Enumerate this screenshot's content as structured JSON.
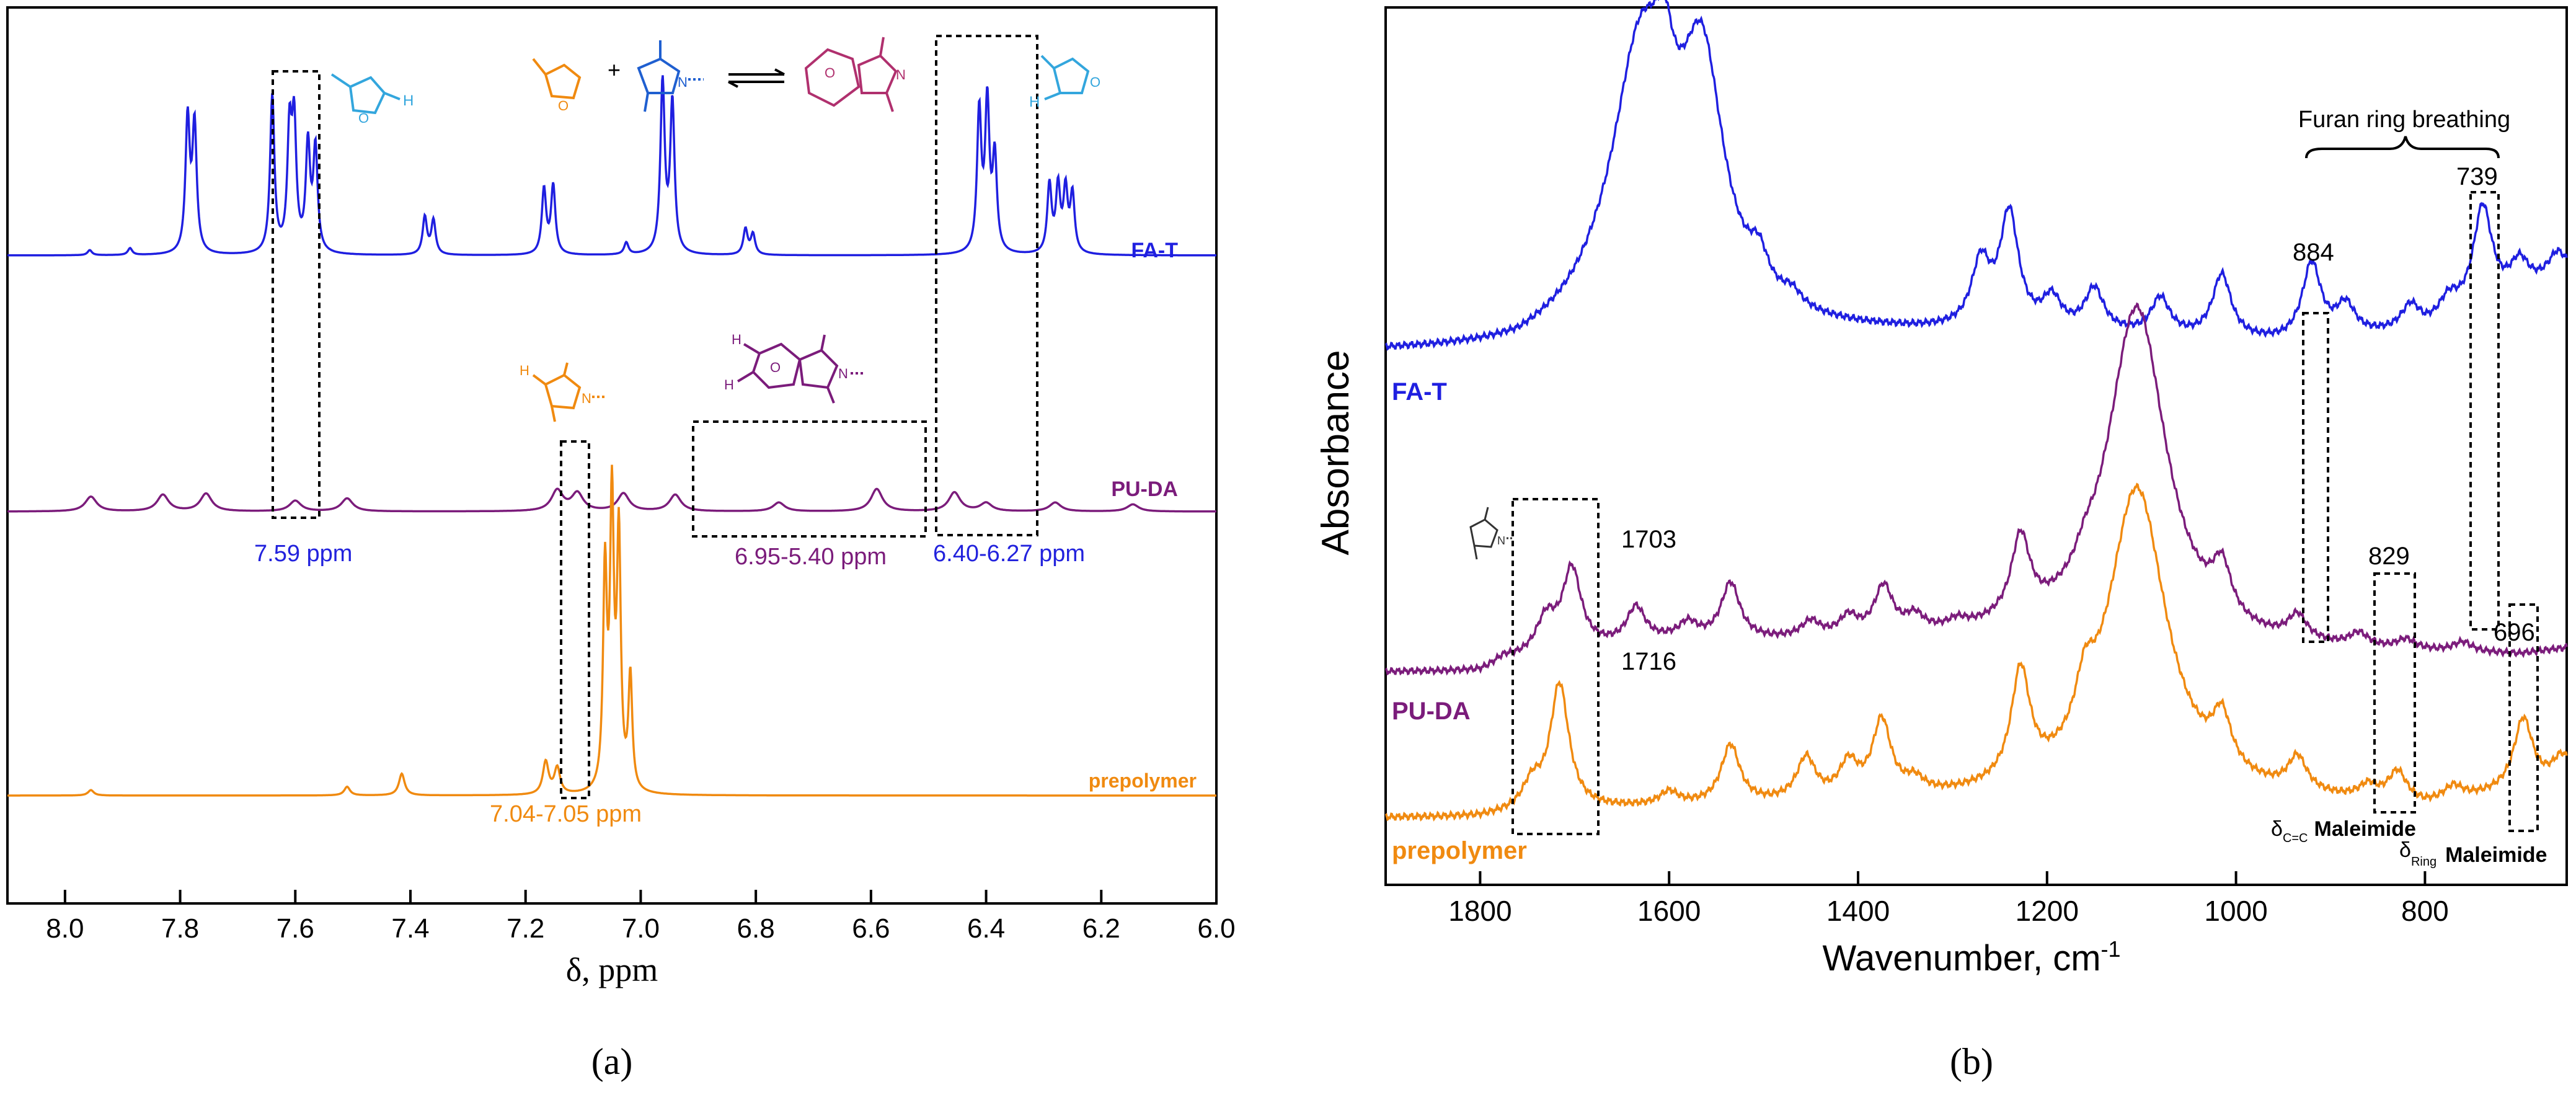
{
  "chart_data": [
    {
      "panel": "a",
      "type": "line",
      "title": "",
      "xlabel": "δ, ppm",
      "ylabel": "",
      "xlim": [
        8.1,
        6.0
      ],
      "xticks": [
        8.0,
        7.8,
        7.6,
        7.4,
        7.2,
        7.0,
        6.8,
        6.6,
        6.4,
        6.2,
        6.0
      ],
      "xtick_labels": [
        "8.0",
        "7.8",
        "7.6",
        "7.4",
        "7.2",
        "7.0",
        "6.8",
        "6.6",
        "6.4",
        "6.2",
        "6.0"
      ],
      "panel_label": "(a)",
      "colors": {
        "FA-T": "#1f1fe0",
        "PU-DA": "#7b1c7b",
        "prepolymer": "#f08a10"
      },
      "series": [
        {
          "name": "FA-T",
          "peaks": [
            {
              "x": 7.957,
              "y": 0.03
            },
            {
              "x": 7.887,
              "y": 0.04
            },
            {
              "x": 7.787,
              "y": 0.78
            },
            {
              "x": 7.775,
              "y": 0.74
            },
            {
              "x": 7.64,
              "y": 0.92
            },
            {
              "x": 7.61,
              "y": 0.68
            },
            {
              "x": 7.602,
              "y": 0.72
            },
            {
              "x": 7.578,
              "y": 0.62
            },
            {
              "x": 7.565,
              "y": 0.6
            },
            {
              "x": 7.375,
              "y": 0.22
            },
            {
              "x": 7.36,
              "y": 0.2
            },
            {
              "x": 7.168,
              "y": 0.38
            },
            {
              "x": 7.152,
              "y": 0.4
            },
            {
              "x": 7.025,
              "y": 0.07
            },
            {
              "x": 6.962,
              "y": 1.0
            },
            {
              "x": 6.945,
              "y": 0.88
            },
            {
              "x": 6.818,
              "y": 0.15
            },
            {
              "x": 6.805,
              "y": 0.12
            },
            {
              "x": 6.412,
              "y": 0.82
            },
            {
              "x": 6.398,
              "y": 0.86
            },
            {
              "x": 6.385,
              "y": 0.55
            },
            {
              "x": 6.29,
              "y": 0.4
            },
            {
              "x": 6.275,
              "y": 0.38
            },
            {
              "x": 6.262,
              "y": 0.36
            },
            {
              "x": 6.25,
              "y": 0.34
            }
          ]
        },
        {
          "name": "PU-DA",
          "peaks": [
            {
              "x": 7.955,
              "y": 0.25
            },
            {
              "x": 7.83,
              "y": 0.28
            },
            {
              "x": 7.755,
              "y": 0.3
            },
            {
              "x": 7.6,
              "y": 0.18
            },
            {
              "x": 7.51,
              "y": 0.22
            },
            {
              "x": 7.145,
              "y": 0.35
            },
            {
              "x": 7.11,
              "y": 0.3
            },
            {
              "x": 7.03,
              "y": 0.3
            },
            {
              "x": 6.94,
              "y": 0.28
            },
            {
              "x": 6.76,
              "y": 0.15
            },
            {
              "x": 6.59,
              "y": 0.38
            },
            {
              "x": 6.455,
              "y": 0.32
            },
            {
              "x": 6.4,
              "y": 0.14
            },
            {
              "x": 6.28,
              "y": 0.15
            },
            {
              "x": 6.145,
              "y": 0.12
            }
          ]
        },
        {
          "name": "prepolymer",
          "peaks": [
            {
              "x": 7.955,
              "y": 0.05
            },
            {
              "x": 7.51,
              "y": 0.08
            },
            {
              "x": 7.415,
              "y": 0.2
            },
            {
              "x": 7.165,
              "y": 0.3
            },
            {
              "x": 7.145,
              "y": 0.24
            },
            {
              "x": 7.062,
              "y": 2.0
            },
            {
              "x": 7.05,
              "y": 2.6
            },
            {
              "x": 7.038,
              "y": 2.3
            },
            {
              "x": 7.018,
              "y": 1.05
            }
          ]
        }
      ],
      "labels": {
        "fat": "FA-T",
        "puda": "PU-DA",
        "pre": "prepolymer"
      },
      "annotations": {
        "a1": "7.59 ppm",
        "a2": "7.04-7.05 ppm",
        "a3": "6.95-5.40 ppm",
        "a4": "6.40-6.27 ppm",
        "scheme_plus": "+"
      },
      "scheme_atoms": {
        "H": "H",
        "O": "O",
        "N": "N"
      }
    },
    {
      "panel": "b",
      "type": "line",
      "title": "",
      "xlabel": "Wavenumber, cm",
      "xlabel_sup": "-1",
      "ylabel": "Absorbance",
      "xlim": [
        1900,
        650
      ],
      "xticks": [
        1800,
        1600,
        1400,
        1200,
        1000,
        800
      ],
      "xtick_labels": [
        "1800",
        "1600",
        "1400",
        "1200",
        "1000",
        "800"
      ],
      "panel_label": "(b)",
      "colors": {
        "FA-T": "#1f1fe0",
        "PU-DA": "#7b1c7b",
        "prepolymer": "#f08a10"
      },
      "series": [
        {
          "name": "FA-T",
          "baseline": [
            [
              1900,
              0.0
            ],
            [
              1760,
              0.0
            ],
            [
              1680,
              0.12
            ],
            [
              1150,
              0.1
            ],
            [
              950,
              0.05
            ],
            [
              800,
              0.12
            ],
            [
              650,
              0.45
            ]
          ],
          "peaks": [
            {
              "x": 1630,
              "y": 1.6
            },
            {
              "x": 1605,
              "y": 0.45
            },
            {
              "x": 1565,
              "y": 1.4
            },
            {
              "x": 1505,
              "y": 0.2
            },
            {
              "x": 1470,
              "y": 0.08
            },
            {
              "x": 1270,
              "y": 0.38
            },
            {
              "x": 1240,
              "y": 0.68
            },
            {
              "x": 1195,
              "y": 0.18
            },
            {
              "x": 1150,
              "y": 0.25
            },
            {
              "x": 1080,
              "y": 0.22
            },
            {
              "x": 1015,
              "y": 0.38
            },
            {
              "x": 920,
              "y": 0.45
            },
            {
              "x": 884,
              "y": 0.18
            },
            {
              "x": 815,
              "y": 0.15
            },
            {
              "x": 775,
              "y": 0.12
            },
            {
              "x": 739,
              "y": 0.6
            },
            {
              "x": 700,
              "y": 0.18
            },
            {
              "x": 660,
              "y": 0.15
            }
          ]
        },
        {
          "name": "PU-DA",
          "baseline": [
            [
              1900,
              0.0
            ],
            [
              1800,
              0.0
            ],
            [
              1740,
              0.1
            ],
            [
              1600,
              0.18
            ],
            [
              1400,
              0.18
            ],
            [
              1250,
              0.2
            ],
            [
              1000,
              0.12
            ],
            [
              700,
              0.1
            ],
            [
              650,
              0.14
            ]
          ],
          "peaks": [
            {
              "x": 1775,
              "y": 0.04
            },
            {
              "x": 1730,
              "y": 0.2
            },
            {
              "x": 1703,
              "y": 0.5
            },
            {
              "x": 1635,
              "y": 0.22
            },
            {
              "x": 1580,
              "y": 0.1
            },
            {
              "x": 1535,
              "y": 0.35
            },
            {
              "x": 1450,
              "y": 0.1
            },
            {
              "x": 1410,
              "y": 0.12
            },
            {
              "x": 1373,
              "y": 0.3
            },
            {
              "x": 1340,
              "y": 0.1
            },
            {
              "x": 1295,
              "y": 0.05
            },
            {
              "x": 1228,
              "y": 0.5
            },
            {
              "x": 1160,
              "y": 0.1
            },
            {
              "x": 1105,
              "y": 2.1
            },
            {
              "x": 1015,
              "y": 0.3
            },
            {
              "x": 935,
              "y": 0.15
            },
            {
              "x": 870,
              "y": 0.08
            },
            {
              "x": 820,
              "y": 0.06
            },
            {
              "x": 760,
              "y": 0.06
            }
          ]
        },
        {
          "name": "prepolymer",
          "baseline": [
            [
              1900,
              0.0
            ],
            [
              1800,
              0.0
            ],
            [
              1760,
              0.02
            ],
            [
              1650,
              0.05
            ],
            [
              1400,
              0.08
            ],
            [
              1250,
              0.1
            ],
            [
              1000,
              0.1
            ],
            [
              800,
              0.05
            ],
            [
              650,
              0.2
            ]
          ],
          "peaks": [
            {
              "x": 1745,
              "y": 0.15
            },
            {
              "x": 1716,
              "y": 0.75
            },
            {
              "x": 1600,
              "y": 0.08
            },
            {
              "x": 1535,
              "y": 0.35
            },
            {
              "x": 1455,
              "y": 0.25
            },
            {
              "x": 1410,
              "y": 0.2
            },
            {
              "x": 1375,
              "y": 0.45
            },
            {
              "x": 1340,
              "y": 0.08
            },
            {
              "x": 1228,
              "y": 0.65
            },
            {
              "x": 1160,
              "y": 0.3
            },
            {
              "x": 1105,
              "y": 1.85
            },
            {
              "x": 1015,
              "y": 0.3
            },
            {
              "x": 935,
              "y": 0.2
            },
            {
              "x": 860,
              "y": 0.08
            },
            {
              "x": 829,
              "y": 0.18
            },
            {
              "x": 770,
              "y": 0.08
            },
            {
              "x": 696,
              "y": 0.42
            },
            {
              "x": 655,
              "y": 0.15
            }
          ]
        }
      ],
      "labels": {
        "fat": "FA-T",
        "puda": "PU-DA",
        "pre": "prepolymer"
      },
      "annotations": {
        "furan": "Furan ring breathing",
        "n739": "739",
        "n884": "884",
        "n1703": "1703",
        "n1716": "1716",
        "n829": "829",
        "n696": "696",
        "delta": "δ",
        "cc_sub": "C=C",
        "ring_sub": "Ring",
        "maleimide": "Maleimide",
        "scheme_n": "N"
      }
    }
  ]
}
